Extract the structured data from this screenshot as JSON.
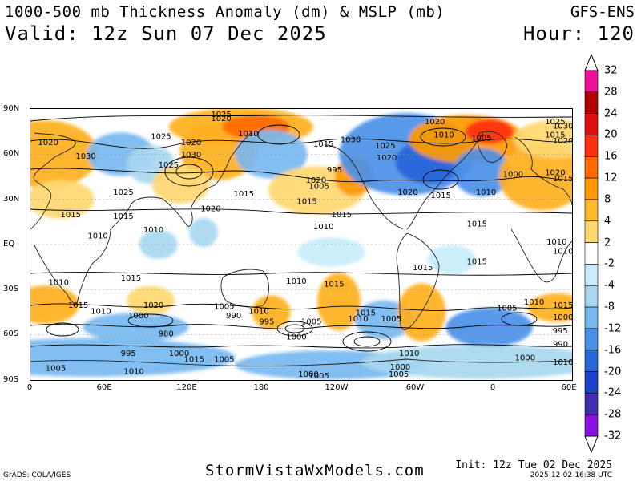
{
  "header": {
    "title": "1000-500 mb Thickness Anomaly (dm) & MSLP (mb)",
    "valid": "Valid: 12z Sun 07 Dec 2025",
    "model": "GFS-ENS",
    "hour": "Hour: 120"
  },
  "map": {
    "lat_labels": [
      "90N",
      "60N",
      "30N",
      "EQ",
      "30S",
      "60S",
      "90S"
    ],
    "lon_labels": [
      "0",
      "60E",
      "120E",
      "180",
      "120W",
      "60W",
      "0",
      "60E"
    ],
    "anomalies": [
      {
        "lon": 10,
        "lat": 60,
        "rx": 22,
        "ry": 14,
        "value": 8
      },
      {
        "lon": 20,
        "lat": 30,
        "rx": 14,
        "ry": 8,
        "value": 6
      },
      {
        "lon": 60,
        "lat": 60,
        "rx": 14,
        "ry": 9,
        "value": -8
      },
      {
        "lon": 80,
        "lat": 53,
        "rx": 10,
        "ry": 8,
        "value": -6
      },
      {
        "lon": 125,
        "lat": 62,
        "rx": 16,
        "ry": 12,
        "value": 8
      },
      {
        "lon": 100,
        "lat": 40,
        "rx": 12,
        "ry": 8,
        "value": 6
      },
      {
        "lon": 140,
        "lat": 78,
        "rx": 30,
        "ry": 8,
        "value": 10
      },
      {
        "lon": 150,
        "lat": 78,
        "rx": 14,
        "ry": 5,
        "value": 16
      },
      {
        "lon": 160,
        "lat": 60,
        "rx": 15,
        "ry": 10,
        "value": -8
      },
      {
        "lon": 190,
        "lat": 36,
        "rx": 20,
        "ry": 10,
        "value": 6
      },
      {
        "lon": 215,
        "lat": 45,
        "rx": 8,
        "ry": 8,
        "value": 12
      },
      {
        "lon": 250,
        "lat": 60,
        "rx": 28,
        "ry": 17,
        "value": -12
      },
      {
        "lon": 265,
        "lat": 55,
        "rx": 14,
        "ry": 9,
        "value": -16
      },
      {
        "lon": 290,
        "lat": 70,
        "rx": 24,
        "ry": 10,
        "value": 12
      },
      {
        "lon": 305,
        "lat": 75,
        "rx": 10,
        "ry": 5,
        "value": 20
      },
      {
        "lon": 300,
        "lat": 48,
        "rx": 12,
        "ry": 10,
        "value": -12
      },
      {
        "lon": 340,
        "lat": 45,
        "rx": 18,
        "ry": 14,
        "value": 8
      },
      {
        "lon": 350,
        "lat": 70,
        "rx": 18,
        "ry": 8,
        "value": 6
      },
      {
        "lon": 85,
        "lat": 0,
        "rx": 8,
        "ry": 6,
        "value": -4
      },
      {
        "lon": 115,
        "lat": 8,
        "rx": 6,
        "ry": 6,
        "value": -4
      },
      {
        "lon": 10,
        "lat": -40,
        "rx": 14,
        "ry": 8,
        "value": 8
      },
      {
        "lon": 70,
        "lat": -55,
        "rx": 22,
        "ry": 6,
        "value": -8
      },
      {
        "lon": 80,
        "lat": -37,
        "rx": 10,
        "ry": 6,
        "value": 6
      },
      {
        "lon": 160,
        "lat": -45,
        "rx": 8,
        "ry": 7,
        "value": 10
      },
      {
        "lon": 205,
        "lat": -38,
        "rx": 9,
        "ry": 12,
        "value": 10
      },
      {
        "lon": 235,
        "lat": -50,
        "rx": 12,
        "ry": 8,
        "value": -8
      },
      {
        "lon": 260,
        "lat": -45,
        "rx": 10,
        "ry": 12,
        "value": 10
      },
      {
        "lon": 305,
        "lat": -55,
        "rx": 18,
        "ry": 8,
        "value": -12
      },
      {
        "lon": 350,
        "lat": -42,
        "rx": 12,
        "ry": 6,
        "value": 8
      },
      {
        "lon": 40,
        "lat": -75,
        "rx": 60,
        "ry": 8,
        "value": -8
      },
      {
        "lon": 200,
        "lat": -80,
        "rx": 40,
        "ry": 6,
        "value": -8
      },
      {
        "lon": 300,
        "lat": -78,
        "rx": 50,
        "ry": 7,
        "value": -6
      },
      {
        "lon": 200,
        "lat": -5,
        "rx": 14,
        "ry": 6,
        "value": -3
      },
      {
        "lon": 280,
        "lat": -10,
        "rx": 10,
        "ry": 6,
        "value": -3
      }
    ],
    "isobar_labels": [
      {
        "text": "1025",
        "lon": 120,
        "lat": 86
      },
      {
        "text": "1020",
        "lon": 120,
        "lat": 82
      },
      {
        "text": "1020",
        "lon": 5,
        "lat": 66
      },
      {
        "text": "1030",
        "lon": 30,
        "lat": 57
      },
      {
        "text": "1025",
        "lon": 80,
        "lat": 70
      },
      {
        "text": "1020",
        "lon": 100,
        "lat": 66
      },
      {
        "text": "1025",
        "lon": 85,
        "lat": 51
      },
      {
        "text": "1030",
        "lon": 100,
        "lat": 58
      },
      {
        "text": "1025",
        "lon": 55,
        "lat": 33
      },
      {
        "text": "1015",
        "lon": 135,
        "lat": 32
      },
      {
        "text": "1010",
        "lon": 138,
        "lat": 72
      },
      {
        "text": "1020",
        "lon": 113,
        "lat": 22
      },
      {
        "text": "1015",
        "lon": 20,
        "lat": 18
      },
      {
        "text": "1015",
        "lon": 55,
        "lat": 17
      },
      {
        "text": "1010",
        "lon": 75,
        "lat": 8
      },
      {
        "text": "1010",
        "lon": 38,
        "lat": 4
      },
      {
        "text": "1015",
        "lon": 188,
        "lat": 65
      },
      {
        "text": "1030",
        "lon": 206,
        "lat": 68
      },
      {
        "text": "995",
        "lon": 197,
        "lat": 48
      },
      {
        "text": "1020",
        "lon": 183,
        "lat": 41
      },
      {
        "text": "1005",
        "lon": 185,
        "lat": 37
      },
      {
        "text": "1015",
        "lon": 177,
        "lat": 27
      },
      {
        "text": "1025",
        "lon": 229,
        "lat": 64
      },
      {
        "text": "1020",
        "lon": 230,
        "lat": 56
      },
      {
        "text": "1015",
        "lon": 200,
        "lat": 18
      },
      {
        "text": "1010",
        "lon": 188,
        "lat": 10
      },
      {
        "text": "1020",
        "lon": 262,
        "lat": 80
      },
      {
        "text": "1010",
        "lon": 268,
        "lat": 71
      },
      {
        "text": "1005",
        "lon": 293,
        "lat": 69
      },
      {
        "text": "1020",
        "lon": 244,
        "lat": 33
      },
      {
        "text": "1015",
        "lon": 266,
        "lat": 31
      },
      {
        "text": "1010",
        "lon": 296,
        "lat": 33
      },
      {
        "text": "1000",
        "lon": 314,
        "lat": 45
      },
      {
        "text": "1015",
        "lon": 290,
        "lat": 12
      },
      {
        "text": "1025",
        "lon": 342,
        "lat": 80
      },
      {
        "text": "1030",
        "lon": 376,
        "lat": 77
      },
      {
        "text": "1015",
        "lon": 342,
        "lat": 71
      },
      {
        "text": "1020",
        "lon": 350,
        "lat": 67
      },
      {
        "text": "1020",
        "lon": 342,
        "lat": 46
      },
      {
        "text": "1015",
        "lon": 368,
        "lat": 42
      },
      {
        "text": "1010",
        "lon": 343,
        "lat": 0
      },
      {
        "text": "1010",
        "lon": 380,
        "lat": -6
      },
      {
        "text": "1015",
        "lon": 254,
        "lat": -17
      },
      {
        "text": "1015",
        "lon": 290,
        "lat": -13
      },
      {
        "text": "1010",
        "lon": 170,
        "lat": -26
      },
      {
        "text": "1015",
        "lon": 195,
        "lat": -28
      },
      {
        "text": "1010",
        "lon": 12,
        "lat": -27
      },
      {
        "text": "1015",
        "lon": 60,
        "lat": -24
      },
      {
        "text": "1015",
        "lon": 25,
        "lat": -42
      },
      {
        "text": "1010",
        "lon": 40,
        "lat": -46
      },
      {
        "text": "1020",
        "lon": 75,
        "lat": -42
      },
      {
        "text": "1000",
        "lon": 65,
        "lat": -49
      },
      {
        "text": "980",
        "lon": 85,
        "lat": -61
      },
      {
        "text": "1005",
        "lon": 122,
        "lat": -43
      },
      {
        "text": "990",
        "lon": 130,
        "lat": -49
      },
      {
        "text": "1010",
        "lon": 145,
        "lat": -46
      },
      {
        "text": "995",
        "lon": 152,
        "lat": -53
      },
      {
        "text": "1000",
        "lon": 170,
        "lat": -63
      },
      {
        "text": "1005",
        "lon": 180,
        "lat": -53
      },
      {
        "text": "1015",
        "lon": 216,
        "lat": -47
      },
      {
        "text": "1010",
        "lon": 211,
        "lat": -51
      },
      {
        "text": "1005",
        "lon": 233,
        "lat": -51
      },
      {
        "text": "995",
        "lon": 60,
        "lat": -74
      },
      {
        "text": "1000",
        "lon": 92,
        "lat": -74
      },
      {
        "text": "1015",
        "lon": 102,
        "lat": -78
      },
      {
        "text": "1005",
        "lon": 122,
        "lat": -78
      },
      {
        "text": "1005",
        "lon": 10,
        "lat": -84
      },
      {
        "text": "1010",
        "lon": 62,
        "lat": -86
      },
      {
        "text": "1000",
        "lon": 178,
        "lat": -88
      },
      {
        "text": "1005",
        "lon": 185,
        "lat": -92
      },
      {
        "text": "1000",
        "lon": 239,
        "lat": -83
      },
      {
        "text": "1005",
        "lon": 238,
        "lat": -88
      },
      {
        "text": "1010",
        "lon": 245,
        "lat": -74
      },
      {
        "text": "1005",
        "lon": 310,
        "lat": -44
      },
      {
        "text": "1010",
        "lon": 328,
        "lat": -40
      },
      {
        "text": "1015",
        "lon": 366,
        "lat": -42
      },
      {
        "text": "1000",
        "lon": 377,
        "lat": -50
      },
      {
        "text": "995",
        "lon": 347,
        "lat": -59
      },
      {
        "text": "990",
        "lon": 356,
        "lat": -68
      },
      {
        "text": "1000",
        "lon": 322,
        "lat": -77
      },
      {
        "text": "1010",
        "lon": 365,
        "lat": -80
      }
    ]
  },
  "colorbar": {
    "labels": [
      "32",
      "28",
      "24",
      "20",
      "16",
      "12",
      "8",
      "4",
      "2",
      "-2",
      "-4",
      "-8",
      "-12",
      "-16",
      "-20",
      "-24",
      "-28",
      "-32"
    ],
    "colors": [
      "#f0109a",
      "#b00000",
      "#e01010",
      "#ff3010",
      "#ff6a00",
      "#ff9a00",
      "#ffba30",
      "#ffd870",
      "#ffffff",
      "#c8ecfa",
      "#a8d8f0",
      "#78b8f0",
      "#4a90e8",
      "#2a66d8",
      "#1a40c8",
      "#4030b0",
      "#8a10e0"
    ]
  },
  "footer": {
    "grads": "GrADS: COLA/IGES",
    "site": "StormVistaWxModels.com",
    "init": "Init: 12z Tue 02 Dec 2025",
    "timestamp": "2025-12-02-16:38 UTC"
  }
}
